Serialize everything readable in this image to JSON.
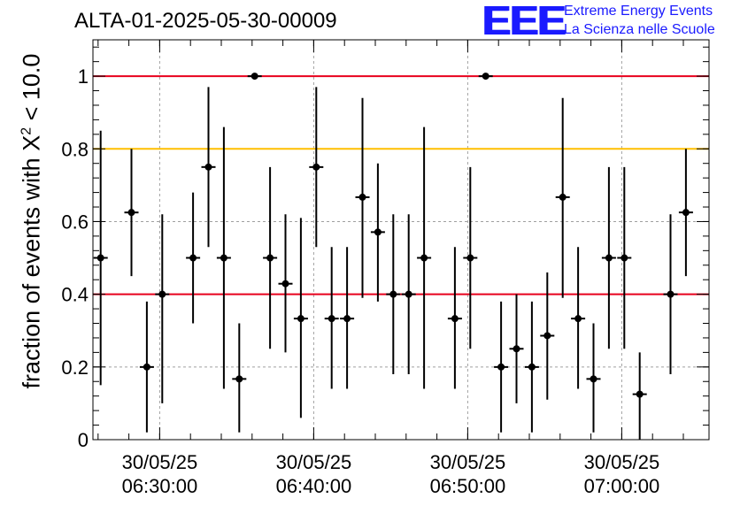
{
  "run_title": "ALTA-01-2025-05-30-00009",
  "logo": {
    "mark": "EEE",
    "line1": "Extreme Energy Events",
    "line2": "La Scienza nelle Scuole"
  },
  "colors": {
    "logo": "#1a1aff",
    "threshold_red": "#e8001c",
    "threshold_orange": "#ffbf00",
    "grid": "#a0a0a0",
    "points": "#000000"
  },
  "chart_data": {
    "type": "scatter",
    "title": "ALTA-01-2025-05-30-00009",
    "ylabel_prefix": "fraction of events with ",
    "ylabel_symbol": "X",
    "ylabel_sup": "2",
    "ylabel_suffix": " < 10.0",
    "xlabel": "",
    "x_unit": "time (30/05/25, hh:mm:ss)",
    "xlim": [
      "06:25:40",
      "07:05:40"
    ],
    "ylim": [
      0,
      1.1
    ],
    "grid": true,
    "yticks": [
      {
        "value": 0,
        "label": "0"
      },
      {
        "value": 0.2,
        "label": "0.2"
      },
      {
        "value": 0.4,
        "label": "0.4"
      },
      {
        "value": 0.6,
        "label": "0.6"
      },
      {
        "value": 0.8,
        "label": "0.8"
      },
      {
        "value": 1.0,
        "label": "1"
      }
    ],
    "xticks": [
      {
        "time": "06:30:00",
        "date_label": "30/05/25",
        "time_label": "06:30:00"
      },
      {
        "time": "06:40:00",
        "date_label": "30/05/25",
        "time_label": "06:40:00"
      },
      {
        "time": "06:50:00",
        "date_label": "30/05/25",
        "time_label": "06:50:00"
      },
      {
        "time": "07:00:00",
        "date_label": "30/05/25",
        "time_label": "07:00:00"
      }
    ],
    "reference_lines": [
      {
        "y": 1.0,
        "color": "#e8001c"
      },
      {
        "y": 0.8,
        "color": "#ffbf00"
      },
      {
        "y": 0.4,
        "color": "#e8001c"
      }
    ],
    "points": [
      {
        "x": "06:26:10",
        "y": 0.5,
        "lo": 0.15,
        "hi": 0.85
      },
      {
        "x": "06:28:10",
        "y": 0.625,
        "lo": 0.45,
        "hi": 0.8
      },
      {
        "x": "06:29:10",
        "y": 0.2,
        "lo": 0.02,
        "hi": 0.38
      },
      {
        "x": "06:30:10",
        "y": 0.4,
        "lo": 0.1,
        "hi": 0.62
      },
      {
        "x": "06:32:10",
        "y": 0.5,
        "lo": 0.32,
        "hi": 0.68
      },
      {
        "x": "06:33:10",
        "y": 0.75,
        "lo": 0.53,
        "hi": 0.97
      },
      {
        "x": "06:34:10",
        "y": 0.5,
        "lo": 0.14,
        "hi": 0.86
      },
      {
        "x": "06:35:10",
        "y": 0.167,
        "lo": 0.02,
        "hi": 0.32
      },
      {
        "x": "06:36:10",
        "y": 1.0,
        "lo": 1.0,
        "hi": 1.0
      },
      {
        "x": "06:37:10",
        "y": 0.5,
        "lo": 0.25,
        "hi": 0.75
      },
      {
        "x": "06:38:10",
        "y": 0.429,
        "lo": 0.24,
        "hi": 0.62
      },
      {
        "x": "06:39:10",
        "y": 0.333,
        "lo": 0.06,
        "hi": 0.61
      },
      {
        "x": "06:40:10",
        "y": 0.75,
        "lo": 0.53,
        "hi": 0.97
      },
      {
        "x": "06:41:10",
        "y": 0.333,
        "lo": 0.14,
        "hi": 0.53
      },
      {
        "x": "06:42:10",
        "y": 0.333,
        "lo": 0.14,
        "hi": 0.53
      },
      {
        "x": "06:43:10",
        "y": 0.667,
        "lo": 0.39,
        "hi": 0.94
      },
      {
        "x": "06:44:10",
        "y": 0.571,
        "lo": 0.38,
        "hi": 0.76
      },
      {
        "x": "06:45:10",
        "y": 0.4,
        "lo": 0.18,
        "hi": 0.62
      },
      {
        "x": "06:46:10",
        "y": 0.4,
        "lo": 0.18,
        "hi": 0.62
      },
      {
        "x": "06:47:10",
        "y": 0.5,
        "lo": 0.14,
        "hi": 0.86
      },
      {
        "x": "06:49:10",
        "y": 0.333,
        "lo": 0.14,
        "hi": 0.53
      },
      {
        "x": "06:50:10",
        "y": 0.5,
        "lo": 0.25,
        "hi": 0.75
      },
      {
        "x": "06:51:10",
        "y": 1.0,
        "lo": 1.0,
        "hi": 1.0
      },
      {
        "x": "06:52:10",
        "y": 0.2,
        "lo": 0.02,
        "hi": 0.38
      },
      {
        "x": "06:53:10",
        "y": 0.25,
        "lo": 0.1,
        "hi": 0.4
      },
      {
        "x": "06:54:10",
        "y": 0.2,
        "lo": 0.02,
        "hi": 0.38
      },
      {
        "x": "06:55:10",
        "y": 0.286,
        "lo": 0.11,
        "hi": 0.46
      },
      {
        "x": "06:56:10",
        "y": 0.667,
        "lo": 0.39,
        "hi": 0.94
      },
      {
        "x": "06:57:10",
        "y": 0.333,
        "lo": 0.14,
        "hi": 0.53
      },
      {
        "x": "06:58:10",
        "y": 0.167,
        "lo": 0.02,
        "hi": 0.32
      },
      {
        "x": "06:59:10",
        "y": 0.5,
        "lo": 0.25,
        "hi": 0.75
      },
      {
        "x": "07:00:10",
        "y": 0.5,
        "lo": 0.25,
        "hi": 0.75
      },
      {
        "x": "07:01:10",
        "y": 0.125,
        "lo": 0.0,
        "hi": 0.24
      },
      {
        "x": "07:03:10",
        "y": 0.4,
        "lo": 0.18,
        "hi": 0.62
      },
      {
        "x": "07:04:10",
        "y": 0.625,
        "lo": 0.45,
        "hi": 0.8
      }
    ]
  }
}
